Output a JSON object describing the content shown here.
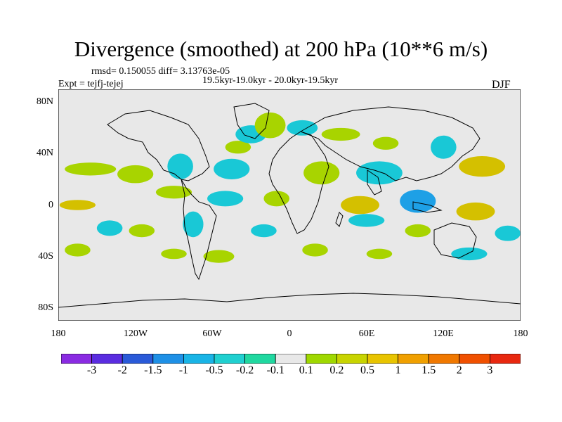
{
  "title": "Divergence (smoothed) at 200 hPa (10**6 m/s)",
  "stats_line": "rmsd= 0.150055 diff= 3.13763e-05",
  "period_line": "19.5kyr-19.0kyr - 20.0kyr-19.5kyr",
  "experiment_line": "Expt = tejfj-tejej",
  "season": "DJF",
  "colors": {
    "land_bg": "#e8e8e8",
    "coast": "#000000"
  },
  "map": {
    "lat_labels": [
      "80N",
      "40N",
      "0",
      "40S",
      "80S"
    ],
    "lon_labels": [
      "180",
      "120W",
      "60W",
      "0",
      "60E",
      "120E",
      "180"
    ],
    "features": [
      {
        "lon": -155,
        "lat": 28,
        "rx": 20,
        "ry": 5,
        "value": 0.2
      },
      {
        "lon": -120,
        "lat": 24,
        "rx": 14,
        "ry": 7,
        "value": 0.2
      },
      {
        "lon": -85,
        "lat": 30,
        "rx": 10,
        "ry": 10,
        "value": -0.5
      },
      {
        "lon": -45,
        "lat": 28,
        "rx": 14,
        "ry": 8,
        "value": -0.5
      },
      {
        "lon": -40,
        "lat": 45,
        "rx": 10,
        "ry": 5,
        "value": 0.2
      },
      {
        "lon": -30,
        "lat": 55,
        "rx": 12,
        "ry": 7,
        "value": -0.5
      },
      {
        "lon": -15,
        "lat": 62,
        "rx": 12,
        "ry": 10,
        "value": 0.2
      },
      {
        "lon": 10,
        "lat": 60,
        "rx": 12,
        "ry": 6,
        "value": -0.5
      },
      {
        "lon": 40,
        "lat": 55,
        "rx": 15,
        "ry": 5,
        "value": 0.2
      },
      {
        "lon": 75,
        "lat": 48,
        "rx": 10,
        "ry": 5,
        "value": 0.2
      },
      {
        "lon": 120,
        "lat": 45,
        "rx": 10,
        "ry": 9,
        "value": -0.5
      },
      {
        "lon": 150,
        "lat": 30,
        "rx": 18,
        "ry": 8,
        "value": 0.5
      },
      {
        "lon": 25,
        "lat": 25,
        "rx": 14,
        "ry": 9,
        "value": 0.2
      },
      {
        "lon": 70,
        "lat": 25,
        "rx": 18,
        "ry": 9,
        "value": -0.5
      },
      {
        "lon": -90,
        "lat": 10,
        "rx": 14,
        "ry": 5,
        "value": 0.2
      },
      {
        "lon": -50,
        "lat": 5,
        "rx": 14,
        "ry": 6,
        "value": -0.5
      },
      {
        "lon": -10,
        "lat": 5,
        "rx": 10,
        "ry": 6,
        "value": 0.2
      },
      {
        "lon": 55,
        "lat": 0,
        "rx": 15,
        "ry": 7,
        "value": 0.5
      },
      {
        "lon": 100,
        "lat": 3,
        "rx": 14,
        "ry": 9,
        "value": -1
      },
      {
        "lon": 145,
        "lat": -5,
        "rx": 15,
        "ry": 7,
        "value": 0.5
      },
      {
        "lon": -165,
        "lat": 0,
        "rx": 14,
        "ry": 4,
        "value": 0.5
      },
      {
        "lon": -140,
        "lat": -18,
        "rx": 10,
        "ry": 6,
        "value": -0.5
      },
      {
        "lon": -115,
        "lat": -20,
        "rx": 10,
        "ry": 5,
        "value": 0.2
      },
      {
        "lon": -75,
        "lat": -15,
        "rx": 8,
        "ry": 10,
        "value": -0.5
      },
      {
        "lon": -20,
        "lat": -20,
        "rx": 10,
        "ry": 5,
        "value": -0.5
      },
      {
        "lon": 60,
        "lat": -12,
        "rx": 14,
        "ry": 5,
        "value": -0.5
      },
      {
        "lon": 100,
        "lat": -20,
        "rx": 10,
        "ry": 5,
        "value": 0.2
      },
      {
        "lon": 170,
        "lat": -22,
        "rx": 10,
        "ry": 6,
        "value": -0.5
      },
      {
        "lon": -165,
        "lat": -35,
        "rx": 10,
        "ry": 5,
        "value": 0.2
      },
      {
        "lon": -90,
        "lat": -38,
        "rx": 10,
        "ry": 4,
        "value": 0.2
      },
      {
        "lon": -55,
        "lat": -40,
        "rx": 12,
        "ry": 5,
        "value": 0.2
      },
      {
        "lon": 20,
        "lat": -35,
        "rx": 10,
        "ry": 5,
        "value": 0.2
      },
      {
        "lon": 70,
        "lat": -38,
        "rx": 10,
        "ry": 4,
        "value": 0.2
      },
      {
        "lon": 140,
        "lat": -38,
        "rx": 14,
        "ry": 5,
        "value": -0.5
      }
    ]
  },
  "colorbar": {
    "colors": [
      "#8a2be2",
      "#5a2ce0",
      "#2a5ad8",
      "#1e90e6",
      "#19b4e6",
      "#20d0d0",
      "#20d8a0",
      "#e8e8e8",
      "#9fd800",
      "#c8d400",
      "#e8c400",
      "#f0a000",
      "#f07800",
      "#f05000",
      "#e82810"
    ],
    "labels": [
      "-3",
      "-2",
      "-1.5",
      "-1",
      "-0.5",
      "-0.2",
      "-0.1",
      "0.1",
      "0.2",
      "0.5",
      "1",
      "1.5",
      "2",
      "3"
    ]
  }
}
